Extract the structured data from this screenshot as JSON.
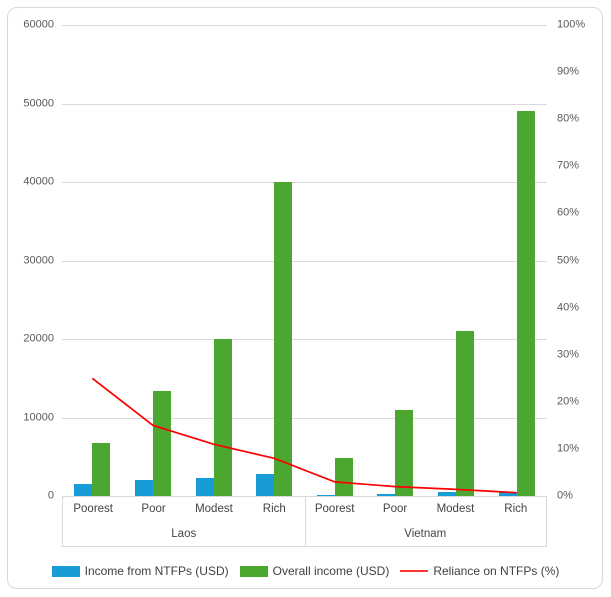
{
  "chart_data": {
    "type": "bar",
    "subtype": "grouped-bar-with-line-combo",
    "groups": [
      "Laos",
      "Vietnam"
    ],
    "categories": [
      "Poorest",
      "Poor",
      "Modest",
      "Rich",
      "Poorest",
      "Poor",
      "Modest",
      "Rich"
    ],
    "series": [
      {
        "name": "Income from NTFPs (USD)",
        "type": "bar",
        "axis": "left",
        "color": "#189cd8",
        "values": [
          1500,
          2000,
          2300,
          2800,
          100,
          300,
          450,
          500
        ]
      },
      {
        "name": "Overall income (USD)",
        "type": "bar",
        "axis": "left",
        "color": "#4ca730",
        "values": [
          6700,
          13400,
          20000,
          40000,
          4800,
          11000,
          21000,
          49000
        ]
      },
      {
        "name": "Reliance on NTFPs (%)",
        "type": "line",
        "axis": "right",
        "color": "#fe0000",
        "values": [
          25,
          15,
          11,
          8,
          3,
          2,
          1.4,
          0.7
        ]
      }
    ],
    "title": "",
    "xlabel": "",
    "ylabel_left": "",
    "ylabel_right": "",
    "left_axis": {
      "min": 0,
      "max": 60000,
      "step": 10000,
      "ticks": [
        "0",
        "10000",
        "20000",
        "30000",
        "40000",
        "50000",
        "60000"
      ]
    },
    "right_axis": {
      "min": 0,
      "max": 100,
      "step": 10,
      "ticks": [
        "0%",
        "10%",
        "20%",
        "30%",
        "40%",
        "50%",
        "60%",
        "70%",
        "80%",
        "90%",
        "100%"
      ]
    },
    "grid": true,
    "legend_position": "bottom"
  },
  "colors": {
    "gridline": "#d9d9d9",
    "frame_border": "#d9d9d9",
    "axis_box_border": "#d9d9d9",
    "axis_text": "#595959",
    "category_text": "#444444",
    "legend_text": "#3f3f3f",
    "background": "#ffffff"
  }
}
